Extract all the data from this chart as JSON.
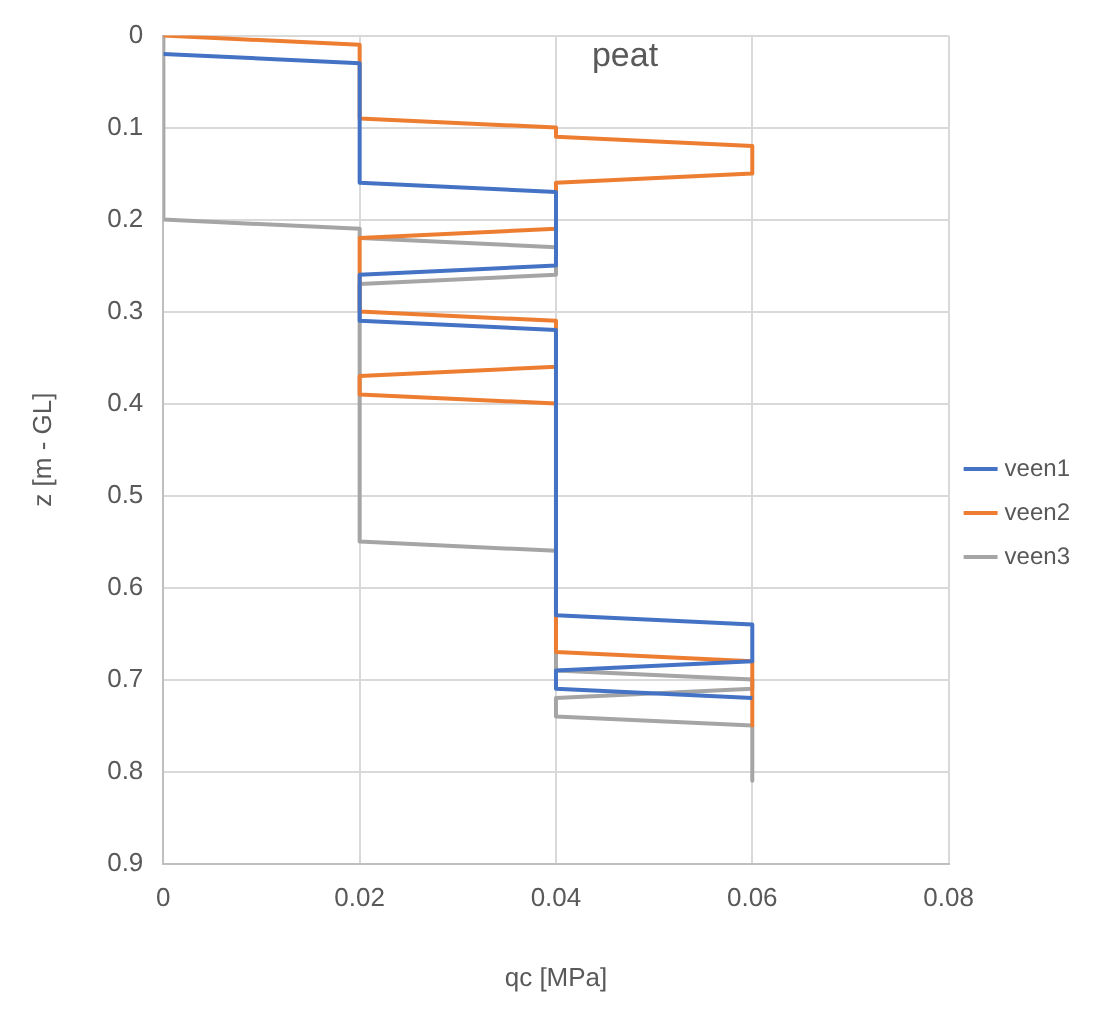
{
  "chart_data": {
    "type": "line",
    "title": "peat",
    "xlabel": "qc [MPa]",
    "ylabel": "z [m - GL]",
    "xlim": [
      0,
      0.08
    ],
    "xticks": [
      0,
      0.02,
      0.04,
      0.06,
      0.08
    ],
    "ylim": [
      0.9,
      0
    ],
    "yticks": [
      0,
      0.1,
      0.2,
      0.3,
      0.4,
      0.5,
      0.6,
      0.7,
      0.8,
      0.9
    ],
    "grid": true,
    "legend": "right",
    "marker": "none",
    "line_style": "solid",
    "series": [
      {
        "name": "veen1",
        "color": "#4472c4",
        "x": [
          0,
          0.02,
          0.02,
          0.04,
          0.04,
          0.02,
          0.02,
          0.04,
          0.04,
          0.06,
          0.06,
          0.04,
          0.04,
          0.06
        ],
        "values": [
          0.02,
          0.03,
          0.16,
          0.17,
          0.25,
          0.26,
          0.31,
          0.32,
          0.63,
          0.64,
          0.68,
          0.69,
          0.71,
          0.72
        ]
      },
      {
        "name": "veen2",
        "color": "#ed7d31",
        "x": [
          0,
          0.02,
          0.02,
          0.04,
          0.04,
          0.06,
          0.06,
          0.04,
          0.04,
          0.02,
          0.02,
          0.04,
          0.04,
          0.02,
          0.02,
          0.04,
          0.04,
          0.06,
          0.06
        ],
        "values": [
          0,
          0.01,
          0.09,
          0.1,
          0.11,
          0.12,
          0.15,
          0.16,
          0.21,
          0.22,
          0.3,
          0.31,
          0.36,
          0.37,
          0.39,
          0.4,
          0.67,
          0.68,
          0.75
        ]
      },
      {
        "name": "veen3",
        "color": "#a5a5a5",
        "x": [
          0,
          0,
          0.02,
          0.02,
          0.04,
          0.04,
          0.02,
          0.02,
          0.04,
          0.04,
          0.06,
          0.06,
          0.04,
          0.04,
          0.06,
          0.06
        ],
        "values": [
          0,
          0.2,
          0.21,
          0.22,
          0.23,
          0.26,
          0.27,
          0.55,
          0.56,
          0.69,
          0.7,
          0.71,
          0.72,
          0.74,
          0.75,
          0.81
        ]
      }
    ]
  }
}
